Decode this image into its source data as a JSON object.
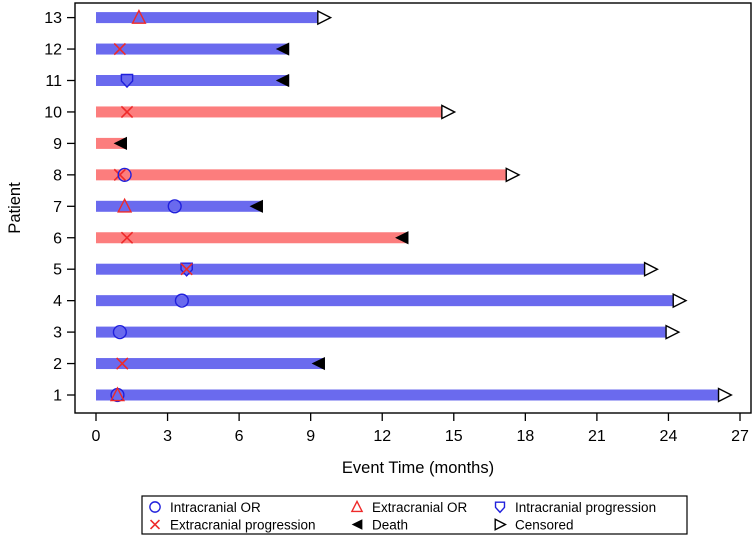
{
  "chart_data": {
    "type": "swimmer",
    "title": "",
    "xlabel": "Event Time (months)",
    "ylabel": "Patient",
    "xlim": [
      0,
      27
    ],
    "xticks": [
      0,
      3,
      6,
      9,
      12,
      15,
      18,
      21,
      24,
      27
    ],
    "grid": false,
    "legend_position": "bottom",
    "colors": {
      "bar_blue": "#6A6AEE",
      "bar_red": "#FC7D7D",
      "marker_blue": "#2020DC",
      "marker_red": "#EE2A2A",
      "black": "#000000",
      "white": "#ffffff"
    },
    "patients": [
      {
        "id": 13,
        "bar": "blue",
        "end": 9.3,
        "end_event": "censored",
        "events": [
          {
            "type": "extracranial_or",
            "t": 1.8
          }
        ]
      },
      {
        "id": 12,
        "bar": "blue",
        "end": 8.1,
        "end_event": "death",
        "events": [
          {
            "type": "extracranial_progression",
            "t": 1.0
          }
        ]
      },
      {
        "id": 11,
        "bar": "blue",
        "end": 8.1,
        "end_event": "death",
        "events": [
          {
            "type": "intracranial_progression",
            "t": 1.3
          }
        ]
      },
      {
        "id": 10,
        "bar": "red",
        "end": 14.5,
        "end_event": "censored",
        "events": [
          {
            "type": "extracranial_progression",
            "t": 1.3
          }
        ]
      },
      {
        "id": 9,
        "bar": "red",
        "end": 1.3,
        "end_event": "death",
        "events": []
      },
      {
        "id": 8,
        "bar": "red",
        "end": 17.2,
        "end_event": "censored",
        "events": [
          {
            "type": "extracranial_progression",
            "t": 1.0
          },
          {
            "type": "intracranial_or",
            "t": 1.2
          }
        ]
      },
      {
        "id": 7,
        "bar": "blue",
        "end": 7.0,
        "end_event": "death",
        "events": [
          {
            "type": "extracranial_or",
            "t": 1.2
          },
          {
            "type": "intracranial_or",
            "t": 3.3
          }
        ]
      },
      {
        "id": 6,
        "bar": "red",
        "end": 13.1,
        "end_event": "death",
        "events": [
          {
            "type": "extracranial_progression",
            "t": 1.3
          }
        ]
      },
      {
        "id": 5,
        "bar": "blue",
        "end": 23.0,
        "end_event": "censored",
        "events": [
          {
            "type": "intracranial_progression",
            "t": 3.8
          },
          {
            "type": "extracranial_progression",
            "t": 3.8
          }
        ]
      },
      {
        "id": 4,
        "bar": "blue",
        "end": 24.2,
        "end_event": "censored",
        "events": [
          {
            "type": "intracranial_or",
            "t": 3.6
          }
        ]
      },
      {
        "id": 3,
        "bar": "blue",
        "end": 23.9,
        "end_event": "censored",
        "events": [
          {
            "type": "intracranial_or",
            "t": 1.0
          }
        ]
      },
      {
        "id": 2,
        "bar": "blue",
        "end": 9.6,
        "end_event": "death",
        "events": [
          {
            "type": "extracranial_progression",
            "t": 1.1
          }
        ]
      },
      {
        "id": 1,
        "bar": "blue",
        "end": 26.1,
        "end_event": "censored",
        "events": [
          {
            "type": "intracranial_or",
            "t": 0.9
          },
          {
            "type": "extracranial_or",
            "t": 0.9
          }
        ]
      }
    ],
    "legend": {
      "rows": [
        [
          {
            "type": "intracranial_or",
            "label": "Intracranial OR"
          },
          {
            "type": "extracranial_or",
            "label": "Extracranial OR"
          },
          {
            "type": "intracranial_progression",
            "label": "Intracranial progression"
          }
        ],
        [
          {
            "type": "extracranial_progression",
            "label": "Extracranial progression"
          },
          {
            "type": "death",
            "label": "Death"
          },
          {
            "type": "censored",
            "label": "Censored"
          }
        ]
      ]
    }
  }
}
